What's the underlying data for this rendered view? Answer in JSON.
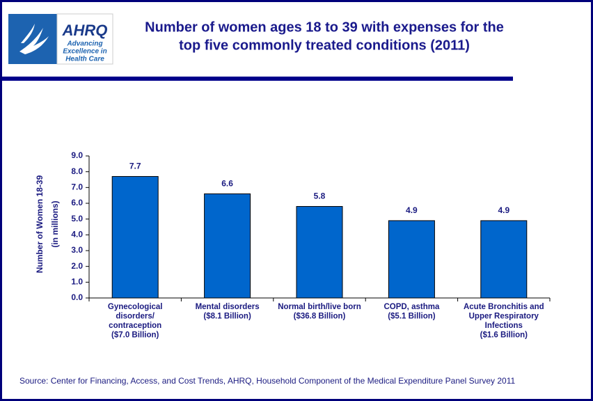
{
  "logo": {
    "name": "AHRQ",
    "tagline": [
      "Advancing",
      "Excellence in",
      "Health Care"
    ]
  },
  "chart_data": {
    "type": "bar",
    "title": [
      "Number of women ages 18 to 39 with expenses for the",
      "top five commonly treated conditions (2011)"
    ],
    "y_label": [
      "Number of Women 18-39",
      "(in millions)"
    ],
    "categories": [
      [
        "Gynecological",
        "disorders/",
        "contraception",
        "($7.0 Billion)"
      ],
      [
        "Mental disorders",
        "($8.1 Billion)"
      ],
      [
        "Normal birth/live born",
        "($36.8 Billion)"
      ],
      [
        "COPD, asthma",
        "($5.1 Billion)"
      ],
      [
        "Acute Bronchitis and",
        "Upper Respiratory",
        "Infections",
        "($1.6 Billion)"
      ]
    ],
    "values": [
      7.7,
      6.6,
      5.8,
      4.9,
      4.9
    ],
    "color": "#0066cc",
    "ylim": [
      0,
      9
    ],
    "yticks": [
      {
        "value": 0,
        "label": "0.0"
      },
      {
        "value": 1,
        "label": "1.0"
      },
      {
        "value": 2,
        "label": "2.0"
      },
      {
        "value": 3,
        "label": "3.0"
      },
      {
        "value": 4,
        "label": "4.0"
      },
      {
        "value": 5,
        "label": "5.0"
      },
      {
        "value": 6,
        "label": "6.0"
      },
      {
        "value": 7,
        "label": "7.0"
      },
      {
        "value": 8,
        "label": "8.0"
      },
      {
        "value": 9,
        "label": "9.0"
      }
    ],
    "source": "Source: Center for Financing, Access, and Cost Trends, AHRQ, Household Component of the Medical Expenditure Panel Survey 2011"
  }
}
